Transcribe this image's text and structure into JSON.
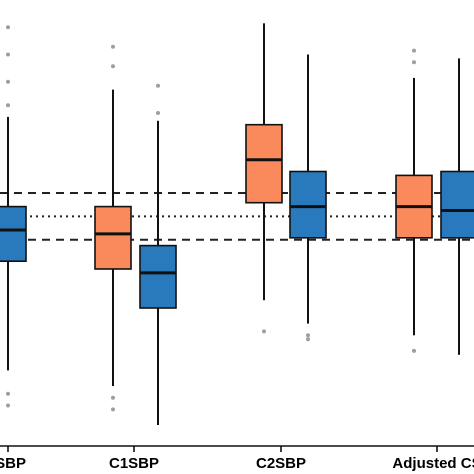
{
  "chart_data": {
    "type": "boxplot",
    "title": "",
    "xlabel": "",
    "ylabel": "",
    "categories": [
      "SBP",
      "C1SBP",
      "C2SBP",
      "Adjusted CS"
    ],
    "ylim": [
      0,
      100
    ],
    "colors": {
      "orange": "#FA8A5C",
      "blue": "#2979BD",
      "outline": "#111111",
      "outlier": "#9e9e9e"
    },
    "reference_lines": [
      {
        "style": "dashed",
        "y": 59.5
      },
      {
        "style": "dotted",
        "y": 53.5
      },
      {
        "style": "dashed",
        "y": 47.5
      }
    ],
    "boxes": [
      {
        "category": "SBP",
        "color": "blue",
        "whisker_low": 14,
        "q1": 42,
        "median": 50,
        "q3": 56,
        "whisker_high": 79,
        "outliers": [
          5,
          8,
          82,
          88,
          95,
          102
        ]
      },
      {
        "category": "C1SBP",
        "color": "orange",
        "whisker_low": 10,
        "q1": 40,
        "median": 49,
        "q3": 56,
        "whisker_high": 86,
        "outliers": [
          4,
          7,
          92,
          97
        ]
      },
      {
        "category": "C1SBP",
        "color": "blue",
        "whisker_low": 0,
        "q1": 30,
        "median": 39,
        "q3": 46,
        "whisker_high": 78,
        "outliers": [
          80,
          87
        ]
      },
      {
        "category": "C2SBP",
        "color": "orange",
        "whisker_low": 32,
        "q1": 57,
        "median": 68,
        "q3": 77,
        "whisker_high": 103,
        "outliers": [
          24
        ]
      },
      {
        "category": "C2SBP",
        "color": "blue",
        "whisker_low": 26,
        "q1": 48,
        "median": 56,
        "q3": 65,
        "whisker_high": 95,
        "outliers": [
          22,
          23
        ]
      },
      {
        "category": "Adjusted CS",
        "color": "orange",
        "whisker_low": 23,
        "q1": 48,
        "median": 56,
        "q3": 64,
        "whisker_high": 89,
        "outliers": [
          19,
          93,
          96
        ]
      },
      {
        "category": "Adjusted CS",
        "color": "blue",
        "whisker_low": 18,
        "q1": 48,
        "median": 55,
        "q3": 65,
        "whisker_high": 94,
        "outliers": []
      }
    ]
  }
}
